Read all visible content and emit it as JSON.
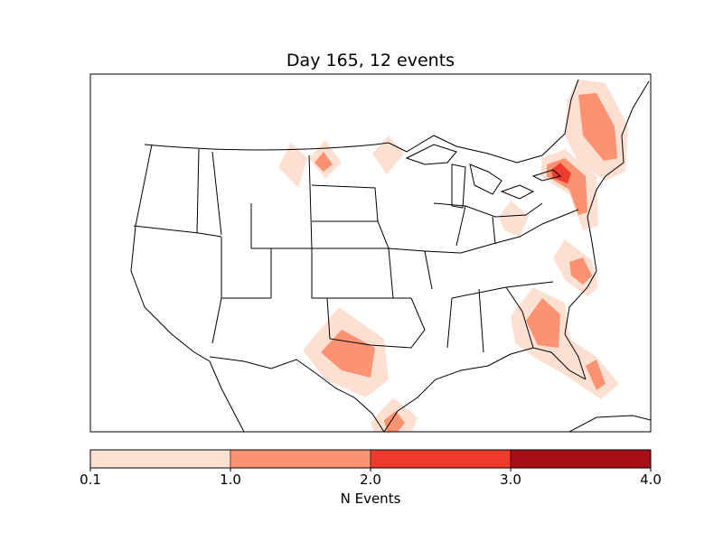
{
  "title": "Day 165, 12 events",
  "colorbar": {
    "label": "N Events",
    "ticks": [
      "0.1",
      "1.0",
      "2.0",
      "3.0",
      "4.0"
    ],
    "bins": [
      {
        "from": 0.1,
        "to": 1.0,
        "color": "#fee0d2"
      },
      {
        "from": 1.0,
        "to": 2.0,
        "color": "#fc9272"
      },
      {
        "from": 2.0,
        "to": 3.0,
        "color": "#ef3b2c"
      },
      {
        "from": 3.0,
        "to": 4.0,
        "color": "#a50f15"
      }
    ]
  },
  "map_data": {
    "type": "contour-map",
    "region": "Continental United States",
    "projection": "lambert-conformal",
    "day": 165,
    "event_count": 12,
    "hotspots": [
      {
        "region": "Montana",
        "level": 2
      },
      {
        "region": "North Dakota",
        "level": 1
      },
      {
        "region": "New England",
        "level": 2
      },
      {
        "region": "New York / New Jersey",
        "level": 3
      },
      {
        "region": "West Virginia / Ohio",
        "level": 1
      },
      {
        "region": "North Carolina",
        "level": 2
      },
      {
        "region": "Georgia / South Carolina",
        "level": 2
      },
      {
        "region": "Florida",
        "level": 2
      },
      {
        "region": "West Texas",
        "level": 2
      },
      {
        "region": "South Texas",
        "level": 2
      }
    ]
  }
}
